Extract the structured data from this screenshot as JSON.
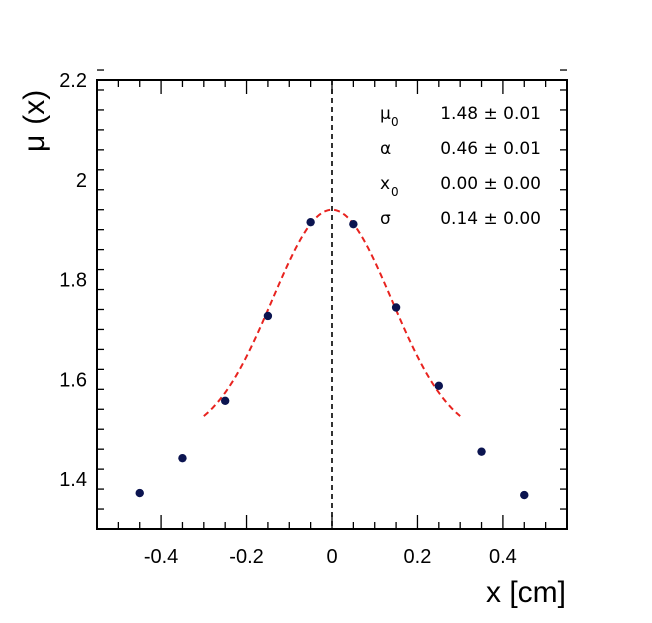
{
  "chart_data": {
    "type": "scatter",
    "title": "",
    "xlabel": "x [cm]",
    "ylabel_symbol": "μ",
    "ylabel_arg": "(x)",
    "xlim": [
      -0.55,
      0.55
    ],
    "ylim": [
      1.3,
      2.2
    ],
    "x_ticks": [
      -0.4,
      -0.2,
      0,
      0.2,
      0.4
    ],
    "x_tick_labels": [
      "-0.4",
      "-0.2",
      "0",
      "0.2",
      "0.4"
    ],
    "y_ticks": [
      1.4,
      1.6,
      1.8,
      2.0,
      2.2
    ],
    "y_tick_labels": [
      "1.4",
      "1.6",
      "1.8",
      "2",
      "2.2"
    ],
    "series": [
      {
        "name": "data",
        "type": "scatter",
        "color": "#0b1450",
        "x": [
          -0.45,
          -0.35,
          -0.25,
          -0.15,
          -0.05,
          0.05,
          0.15,
          0.25,
          0.35,
          0.45
        ],
        "y": [
          1.372,
          1.442,
          1.557,
          1.727,
          1.915,
          1.911,
          1.744,
          1.587,
          1.455,
          1.368
        ]
      },
      {
        "name": "fit",
        "type": "line",
        "style": "dashed",
        "color": "#e8231f",
        "x_range": [
          -0.3,
          0.3
        ],
        "model": "mu0 + alpha * exp(-(x - x0)^2 / (2 sigma^2))",
        "params": {
          "mu0": 1.48,
          "alpha": 0.46,
          "x0": 0.0,
          "sigma": 0.14
        }
      }
    ],
    "reference_line": {
      "x": 0,
      "style": "dashed",
      "color": "#000000"
    },
    "legend": {
      "placement": "top-right",
      "entries": [
        {
          "symbol": "μ",
          "subscript": "0",
          "value": "1.48 ± 0.01"
        },
        {
          "symbol": "α",
          "subscript": "",
          "value": "0.46 ± 0.01"
        },
        {
          "symbol": "x",
          "subscript": "0",
          "value": "0.00 ± 0.00"
        },
        {
          "symbol": "σ",
          "subscript": "",
          "value": "0.14 ± 0.00"
        }
      ]
    }
  }
}
